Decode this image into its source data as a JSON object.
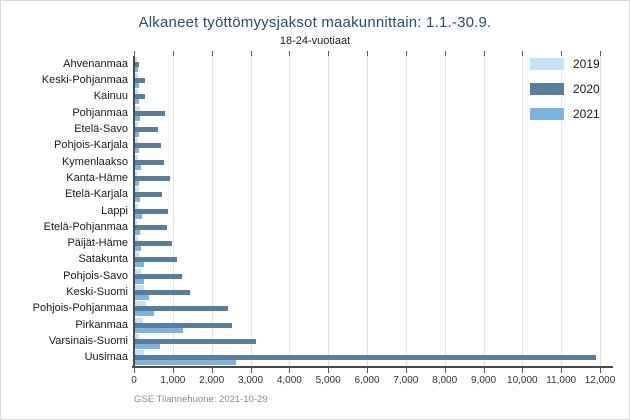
{
  "chart_data": {
    "type": "bar",
    "orientation": "horizontal",
    "title": "Alkaneet työttömyysjaksot maakunnittain: 1.1.-30.9.",
    "subtitle": "18-24-vuotiaat",
    "categories": [
      "Ahvenanmaa",
      "Keski-Pohjanmaa",
      "Kainuu",
      "Pohjanmaa",
      "Etelä-Savo",
      "Pohjois-Karjala",
      "Kymenlaakso",
      "Kanta-Häme",
      "Etelä-Karjala",
      "Lappi",
      "Etelä-Pohjanmaa",
      "Päijät-Häme",
      "Satakunta",
      "Pohjois-Savo",
      "Keski-Suomi",
      "Pohjois-Pohjanmaa",
      "Pirkanmaa",
      "Varsinais-Suomi",
      "Uusimaa"
    ],
    "series": [
      {
        "name": "2019",
        "color": "#c7e1f4",
        "values": [
          70,
          95,
          110,
          160,
          105,
          105,
          100,
          70,
          135,
          105,
          70,
          105,
          135,
          170,
          255,
          310,
          220,
          140,
          250
        ]
      },
      {
        "name": "2020",
        "color": "#587e9b",
        "values": [
          140,
          280,
          275,
          790,
          615,
          690,
          760,
          920,
          720,
          880,
          855,
          990,
          1100,
          1230,
          1450,
          2430,
          2530,
          3130,
          11900
        ]
      },
      {
        "name": "2021",
        "color": "#7db3dd",
        "values": [
          100,
          140,
          140,
          160,
          140,
          140,
          190,
          140,
          160,
          205,
          160,
          190,
          255,
          255,
          375,
          510,
          1250,
          680,
          2620
        ]
      }
    ],
    "xlim": [
      0,
      12000
    ],
    "x_ticks": [
      0,
      1000,
      2000,
      3000,
      4000,
      5000,
      6000,
      7000,
      8000,
      9000,
      10000,
      11000,
      12000
    ],
    "x_tick_labels": [
      "0",
      "1,000",
      "2,000",
      "3,000",
      "4,000",
      "5,000",
      "6,000",
      "7,000",
      "8,000",
      "9,000",
      "10,000",
      "11,000",
      "12,000"
    ],
    "legend_position": "top-right",
    "grid": "vertical"
  },
  "footer": {
    "source": "GSE Tilannehuone: 2021-10-29"
  },
  "colors": {
    "title": "#2a4d68",
    "axis": "#4a4a4a",
    "gridline": "#e3e3e3",
    "footer_text": "#8a8a8a",
    "background": "#ffffff"
  }
}
